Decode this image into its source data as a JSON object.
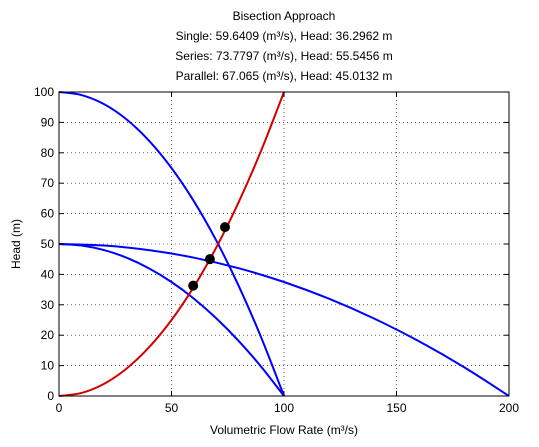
{
  "chart_data": {
    "type": "line",
    "title_lines": [
      "Bisection Approach",
      "Single: 59.6409 (m³/s), Head: 36.2962 m",
      "Series: 73.7797 (m³/s), Head: 55.5456 m",
      "Parallel: 67.065 (m³/s), Head: 45.0132 m"
    ],
    "xlabel": "Volumetric Flow Rate (m³/s)",
    "ylabel": "Head (m)",
    "xlim": [
      0,
      200
    ],
    "ylim": [
      0,
      100
    ],
    "xticks": [
      0,
      50,
      100,
      150,
      200
    ],
    "yticks": [
      0,
      10,
      20,
      30,
      40,
      50,
      60,
      70,
      80,
      90,
      100
    ],
    "grid": true,
    "series": [
      {
        "color": "#0000ff",
        "x": [
          0,
          10,
          20,
          30,
          40,
          50,
          60,
          70,
          80,
          90,
          100
        ],
        "y": [
          50,
          49.5,
          48,
          45.5,
          42,
          37.5,
          32,
          25.5,
          18,
          9.5,
          0
        ]
      },
      {
        "color": "#0000ff",
        "x": [
          0,
          10,
          20,
          30,
          40,
          50,
          60,
          70,
          80,
          90,
          100
        ],
        "y": [
          100,
          99,
          96,
          91,
          84,
          75,
          64,
          51,
          36,
          19,
          0
        ]
      },
      {
        "color": "#0000ff",
        "x": [
          0,
          20,
          40,
          60,
          80,
          100,
          120,
          140,
          160,
          180,
          200
        ],
        "y": [
          50,
          49.5,
          48,
          45.5,
          42,
          37.5,
          32,
          25.5,
          18,
          9.5,
          0
        ]
      },
      {
        "color": "#d40000",
        "x": [
          0,
          10,
          20,
          30,
          40,
          50,
          60,
          70,
          80,
          90,
          100
        ],
        "y": [
          0,
          1,
          4,
          9,
          16,
          25,
          36,
          49,
          64,
          81,
          100
        ]
      }
    ],
    "points": [
      {
        "x": 59.6409,
        "y": 36.2962
      },
      {
        "x": 73.7797,
        "y": 55.5456
      },
      {
        "x": 67.065,
        "y": 45.0132
      }
    ]
  }
}
